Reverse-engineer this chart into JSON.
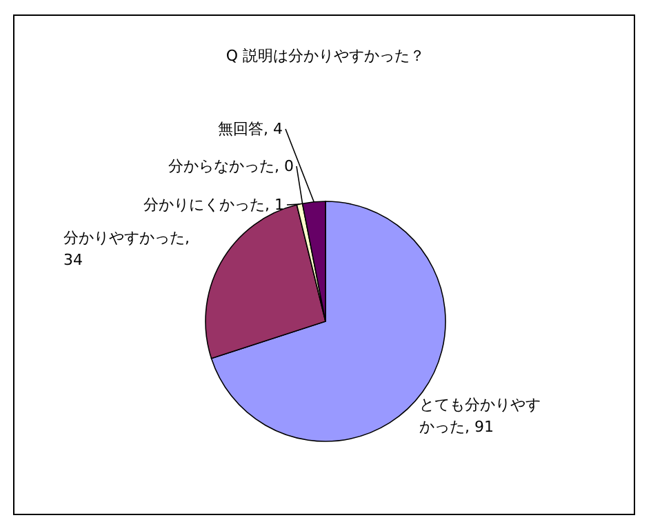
{
  "chart_data": {
    "type": "pie",
    "title": "Q 説明は分かりやすかった？",
    "categories": [
      "とても分かりやすかった",
      "分かりやすかった",
      "分かりにくかった",
      "分からなかった",
      "無回答"
    ],
    "values": [
      91,
      34,
      1,
      0,
      4
    ],
    "value_labels": [
      ", 91",
      ", 34",
      ", 1",
      ", 0",
      ", 4"
    ],
    "colors": [
      "#9999ff",
      "#993366",
      "#ffffcc",
      "#ccffff",
      "#660066"
    ]
  }
}
